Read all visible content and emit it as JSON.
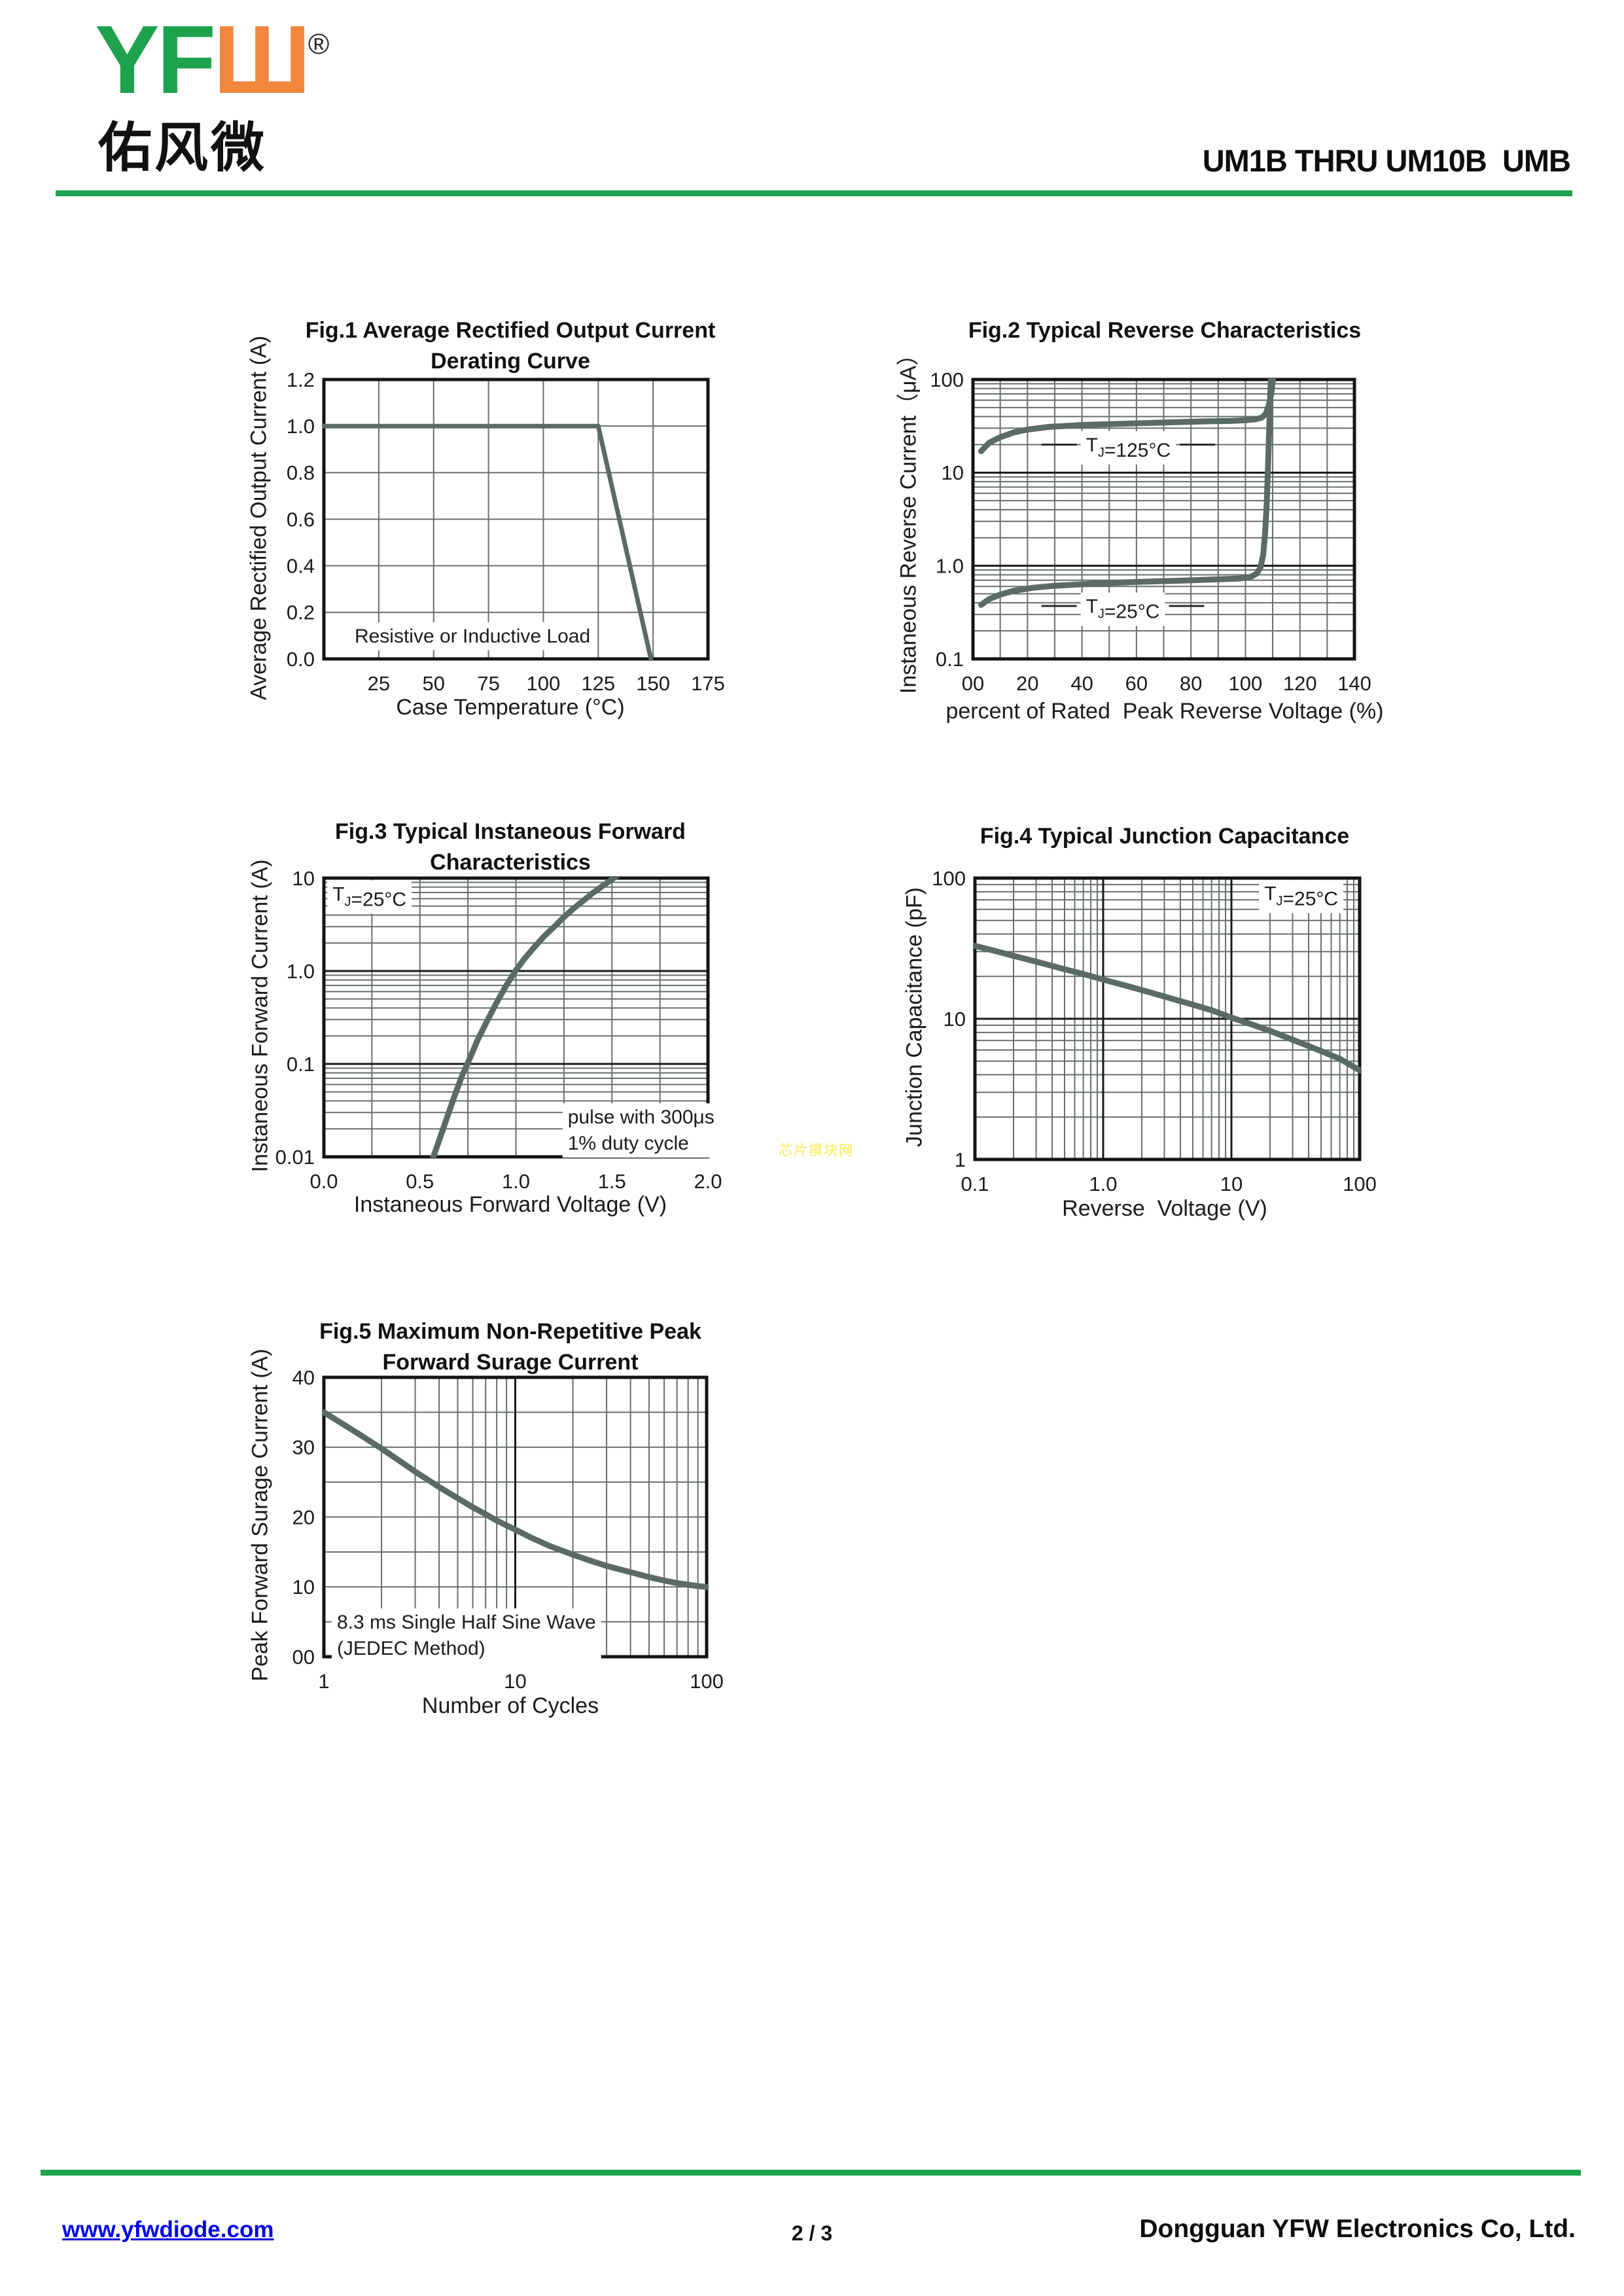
{
  "header": {
    "logo_latin": "YF",
    "logo_mark": "Ш",
    "logo_reg": "®",
    "logo_chinese": "佑风微",
    "doc_title": "UM1B THRU UM10B  UMB"
  },
  "watermark": "芯片模块网",
  "footer": {
    "website": "www.yfwdiode.com",
    "page": "2 / 3",
    "company": "Dongguan YFW Electronics Co, Ltd."
  },
  "colors": {
    "accent_green": "#1FA24D",
    "logo_orange": "#F0873C",
    "curve": "#5a6b63",
    "grid_minor": "#667069",
    "grid_major": "#1a1a1a",
    "link_blue": "#0000EE",
    "watermark_yellow": "#FBF080"
  },
  "chart_data": [
    {
      "type": "line",
      "title_lines": [
        "Fig.1  Average Rectified Output Current",
        "Derating Curve"
      ],
      "xlabel": "Case Temperature (°C)",
      "ylabel": "Average Rectified Output Current (A)",
      "x_scale": "linear",
      "y_scale": "linear",
      "xlim": [
        0,
        175
      ],
      "ylim": [
        0,
        1.2
      ],
      "x_ticks": [
        25,
        50,
        75,
        100,
        125,
        150,
        175
      ],
      "x_tick_labels": [
        "25",
        "50",
        "75",
        "100",
        "125",
        "150",
        "175"
      ],
      "y_ticks": [
        0,
        0.2,
        0.4,
        0.6,
        0.8,
        1.0,
        1.2
      ],
      "y_tick_labels": [
        "0.0",
        "0.2",
        "0.4",
        "0.6",
        "0.8",
        "1.0",
        "1.2"
      ],
      "x_grid": [
        25,
        50,
        75,
        100,
        125,
        150
      ],
      "y_grid": [
        0.2,
        0.4,
        0.6,
        0.8,
        1.0
      ],
      "line_width": 7,
      "series": [
        {
          "name": "derating-curve",
          "points": [
            [
              0,
              1.0
            ],
            [
              125,
              1.0
            ],
            [
              149,
              0.0
            ]
          ]
        }
      ],
      "annotations": [
        {
          "x": 14,
          "y": 0.1,
          "anchor": "start",
          "bg": true,
          "lines": [
            "Resistive or Inductive Load"
          ]
        }
      ]
    },
    {
      "type": "line",
      "title_lines": [
        "Fig.2  Typical Reverse Characteristics"
      ],
      "xlabel": "percent of Rated  Peak Reverse Voltage (%)",
      "ylabel": "Instaneous Reverse Current（μA）",
      "x_scale": "linear",
      "y_scale": "log",
      "xlim": [
        0,
        140
      ],
      "ylim": [
        0.1,
        100
      ],
      "x_ticks": [
        0,
        20,
        40,
        60,
        80,
        100,
        120,
        140
      ],
      "x_tick_labels": [
        "00",
        "20",
        "40",
        "60",
        "80",
        "100",
        "120",
        "140"
      ],
      "y_ticks": [
        0.1,
        1.0,
        10,
        100
      ],
      "y_tick_labels": [
        "0.1",
        "1.0",
        "10",
        "100"
      ],
      "x_grid": [
        10,
        20,
        30,
        40,
        50,
        60,
        70,
        80,
        90,
        100,
        110,
        120,
        130
      ],
      "y_grid": [],
      "line_width": 9,
      "series": [
        {
          "name": "tj-125c",
          "points": [
            [
              3,
              17
            ],
            [
              6,
              21
            ],
            [
              10,
              24
            ],
            [
              15,
              27
            ],
            [
              20,
              29
            ],
            [
              28,
              31
            ],
            [
              40,
              32.5
            ],
            [
              55,
              33.5
            ],
            [
              70,
              34.5
            ],
            [
              85,
              35.5
            ],
            [
              95,
              36
            ],
            [
              100,
              36.5
            ],
            [
              104,
              37.5
            ],
            [
              106,
              39
            ],
            [
              107.5,
              43
            ],
            [
              108.5,
              52
            ],
            [
              109.5,
              70
            ],
            [
              110,
              95
            ],
            [
              110.3,
              115
            ]
          ]
        },
        {
          "name": "tj-25c",
          "points": [
            [
              3,
              0.38
            ],
            [
              6,
              0.44
            ],
            [
              10,
              0.49
            ],
            [
              15,
              0.54
            ],
            [
              22,
              0.58
            ],
            [
              30,
              0.61
            ],
            [
              45,
              0.645
            ],
            [
              60,
              0.67
            ],
            [
              75,
              0.69
            ],
            [
              90,
              0.715
            ],
            [
              98,
              0.73
            ],
            [
              102,
              0.76
            ],
            [
              104,
              0.82
            ],
            [
              105.5,
              0.95
            ],
            [
              106.5,
              1.3
            ],
            [
              107.2,
              2.2
            ],
            [
              107.8,
              4.5
            ],
            [
              108.3,
              12
            ],
            [
              108.8,
              35
            ],
            [
              109.2,
              80
            ],
            [
              109.5,
              115
            ]
          ]
        }
      ],
      "annotations": [
        {
          "x": 57,
          "y": 20,
          "anchor": "middle",
          "bg": true,
          "leader": true,
          "segments": [
            [
              "T",
              false
            ],
            [
              "J",
              true
            ],
            [
              "=125°C",
              false
            ]
          ]
        },
        {
          "x": 55,
          "y": 0.37,
          "anchor": "middle",
          "bg": true,
          "leader": true,
          "segments": [
            [
              "T",
              false
            ],
            [
              "J",
              true
            ],
            [
              "=25°C",
              false
            ]
          ]
        }
      ]
    },
    {
      "type": "line",
      "title_lines": [
        "Fig.3  Typical Instaneous Forward",
        "Characteristics"
      ],
      "xlabel": "Instaneous Forward Voltage (V)",
      "ylabel": "Instaneous Forward Current (A)",
      "x_scale": "linear",
      "y_scale": "log",
      "xlim": [
        0,
        2.0
      ],
      "ylim": [
        0.01,
        10
      ],
      "x_ticks": [
        0,
        0.5,
        1.0,
        1.5,
        2.0
      ],
      "x_tick_labels": [
        "0.0",
        "0.5",
        "1.0",
        "1.5",
        "2.0"
      ],
      "y_ticks": [
        0.01,
        0.1,
        1.0,
        10
      ],
      "y_tick_labels": [
        "0.01",
        "0.1",
        "1.0",
        "10"
      ],
      "x_grid": [
        0.25,
        0.5,
        0.75,
        1.0,
        1.25,
        1.5,
        1.75
      ],
      "y_grid": [],
      "line_width": 9,
      "series": [
        {
          "name": "forward-characteristic",
          "points": [
            [
              0.57,
              0.01
            ],
            [
              0.6,
              0.015
            ],
            [
              0.64,
              0.026
            ],
            [
              0.68,
              0.045
            ],
            [
              0.72,
              0.075
            ],
            [
              0.76,
              0.115
            ],
            [
              0.8,
              0.18
            ],
            [
              0.85,
              0.29
            ],
            [
              0.9,
              0.46
            ],
            [
              0.95,
              0.7
            ],
            [
              1.0,
              1.02
            ],
            [
              1.05,
              1.4
            ],
            [
              1.1,
              1.85
            ],
            [
              1.15,
              2.4
            ],
            [
              1.2,
              3.0
            ],
            [
              1.25,
              3.8
            ],
            [
              1.3,
              4.7
            ],
            [
              1.35,
              5.7
            ],
            [
              1.4,
              6.9
            ],
            [
              1.45,
              8.2
            ],
            [
              1.5,
              9.7
            ],
            [
              1.53,
              10.8
            ]
          ]
        }
      ],
      "annotations": [
        {
          "x": 0.045,
          "y": 6.8,
          "anchor": "start",
          "bg": true,
          "segments": [
            [
              "T",
              false
            ],
            [
              "J",
              true
            ],
            [
              "=25°C",
              false
            ]
          ]
        },
        {
          "x": 1.27,
          "y": 0.027,
          "anchor": "start",
          "bg": true,
          "lines": [
            "pulse with 300μs",
            "1% duty cycle"
          ]
        }
      ]
    },
    {
      "type": "line",
      "title_lines": [
        "Fig.4  Typical Junction Capacitance"
      ],
      "xlabel": "Reverse  Voltage (V)",
      "ylabel": "Junction Capacitance (pF)",
      "x_scale": "log",
      "y_scale": "log",
      "xlim": [
        0.1,
        100
      ],
      "ylim": [
        1,
        100
      ],
      "x_ticks": [
        0.1,
        1.0,
        10,
        100
      ],
      "x_tick_labels": [
        "0.1",
        "1.0",
        "10",
        "100"
      ],
      "y_ticks": [
        1,
        10,
        100
      ],
      "y_tick_labels": [
        "1",
        "10",
        "100"
      ],
      "x_grid": [],
      "y_grid": [],
      "line_width": 9,
      "series": [
        {
          "name": "junction-capacitance",
          "points": [
            [
              0.1,
              33
            ],
            [
              0.15,
              30
            ],
            [
              0.2,
              28
            ],
            [
              0.3,
              25.5
            ],
            [
              0.5,
              22.5
            ],
            [
              0.7,
              20.8
            ],
            [
              1.0,
              19
            ],
            [
              1.5,
              17.2
            ],
            [
              2,
              16
            ],
            [
              3,
              14.4
            ],
            [
              5,
              12.6
            ],
            [
              7,
              11.5
            ],
            [
              10,
              10.2
            ],
            [
              15,
              9.0
            ],
            [
              20,
              8.2
            ],
            [
              30,
              7.1
            ],
            [
              50,
              5.9
            ],
            [
              70,
              5.2
            ],
            [
              100,
              4.3
            ]
          ]
        }
      ],
      "annotations": [
        {
          "x": 35,
          "y": 78,
          "anchor": "middle",
          "bg": true,
          "segments": [
            [
              "T",
              false
            ],
            [
              "J",
              true
            ],
            [
              "=25°C",
              false
            ]
          ]
        }
      ]
    },
    {
      "type": "line",
      "title_lines": [
        "Fig.5  Maximum Non-Repetitive Peak",
        "Forward Surage Current"
      ],
      "xlabel": "Number of Cycles",
      "ylabel": "Peak Forward Surage Current (A)",
      "x_scale": "log",
      "y_scale": "linear",
      "xlim": [
        1,
        100
      ],
      "ylim": [
        0,
        40
      ],
      "x_ticks": [
        1,
        10,
        100
      ],
      "x_tick_labels": [
        "1",
        "10",
        "100"
      ],
      "y_ticks": [
        0,
        10,
        20,
        30,
        40
      ],
      "y_tick_labels": [
        "00",
        "10",
        "20",
        "30",
        "40"
      ],
      "x_grid": [],
      "y_grid": [
        5,
        10,
        15,
        20,
        25,
        30,
        35
      ],
      "line_width": 9,
      "series": [
        {
          "name": "surge-current",
          "points": [
            [
              1,
              35
            ],
            [
              1.5,
              32
            ],
            [
              2,
              29.8
            ],
            [
              2.5,
              28
            ],
            [
              3,
              26.5
            ],
            [
              4,
              24.3
            ],
            [
              5,
              22.7
            ],
            [
              6,
              21.4
            ],
            [
              7,
              20.4
            ],
            [
              8,
              19.5
            ],
            [
              9,
              18.8
            ],
            [
              10,
              18.2
            ],
            [
              12,
              17.1
            ],
            [
              15,
              15.9
            ],
            [
              20,
              14.6
            ],
            [
              25,
              13.7
            ],
            [
              30,
              13.0
            ],
            [
              40,
              12.1
            ],
            [
              50,
              11.4
            ],
            [
              60,
              10.9
            ],
            [
              70,
              10.55
            ],
            [
              80,
              10.3
            ],
            [
              90,
              10.12
            ],
            [
              100,
              10
            ]
          ]
        }
      ],
      "annotations": [
        {
          "x": 1.17,
          "y": 5.0,
          "anchor": "start",
          "bg": true,
          "lines": [
            "8.3 ms Single Half Sine Wave",
            "(JEDEC Method)"
          ]
        }
      ]
    }
  ]
}
